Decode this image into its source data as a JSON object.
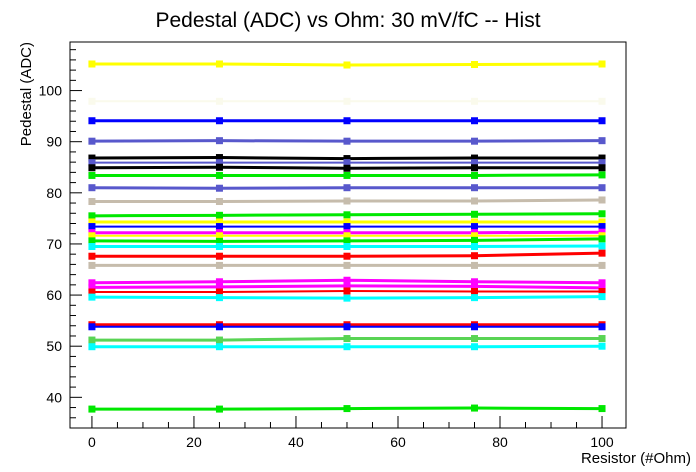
{
  "chart_data": {
    "type": "line",
    "title": "Pedestal (ADC) vs Ohm: 30 mV/fC -- Hist",
    "xlabel": "Resistor (#Ohm)",
    "ylabel": "Pedestal (ADC)",
    "x": [
      0,
      25,
      50,
      75,
      100
    ],
    "xlim": [
      -4.3,
      104.7
    ],
    "ylim": [
      34,
      109.5
    ],
    "x_major_ticks": [
      0,
      20,
      40,
      60,
      80,
      100
    ],
    "x_minor_step": 5,
    "y_major_ticks": [
      40,
      50,
      60,
      70,
      80,
      90,
      100
    ],
    "y_minor_step": 2,
    "grid": false,
    "legend": "none",
    "marker": "filled-square",
    "marker_size": 7,
    "frame_color": "#000000",
    "background_color": "#ffffff",
    "series": [
      {
        "color": "#FFFF00",
        "line_width": 3,
        "values": [
          105.2,
          105.2,
          105.0,
          105.1,
          105.2
        ]
      },
      {
        "color": "#FAFAEC",
        "line_width": 2,
        "values": [
          97.9,
          97.9,
          97.9,
          97.9,
          97.9
        ]
      },
      {
        "color": "#0000FF",
        "line_width": 3,
        "values": [
          94.1,
          94.1,
          94.1,
          94.1,
          94.1
        ]
      },
      {
        "color": "#5858CC",
        "line_width": 3,
        "values": [
          90.1,
          90.2,
          90.1,
          90.1,
          90.2
        ]
      },
      {
        "color": "#000000",
        "line_width": 3,
        "values": [
          86.8,
          86.9,
          86.7,
          86.8,
          86.8
        ]
      },
      {
        "color": "#5858CC",
        "line_width": 2,
        "values": [
          85.9,
          85.9,
          85.9,
          85.9,
          85.9
        ]
      },
      {
        "color": "#000000",
        "line_width": 3,
        "values": [
          84.9,
          85.0,
          84.8,
          84.9,
          84.9
        ]
      },
      {
        "color": "#00E800",
        "line_width": 3,
        "values": [
          83.4,
          83.4,
          83.4,
          83.4,
          83.5
        ]
      },
      {
        "color": "#5858CC",
        "line_width": 3,
        "values": [
          81.0,
          80.9,
          81.0,
          81.0,
          81.0
        ]
      },
      {
        "color": "#C6BCAC",
        "line_width": 3,
        "values": [
          78.3,
          78.3,
          78.4,
          78.4,
          78.6
        ]
      },
      {
        "color": "#00E800",
        "line_width": 3,
        "values": [
          75.5,
          75.6,
          75.7,
          75.8,
          75.9
        ]
      },
      {
        "color": "#FFFF00",
        "line_width": 3,
        "values": [
          74.3,
          74.3,
          74.3,
          74.3,
          74.3
        ]
      },
      {
        "color": "#0000FF",
        "line_width": 2,
        "values": [
          73.4,
          73.4,
          73.4,
          73.4,
          73.4
        ]
      },
      {
        "color": "#FF00FF",
        "line_width": 3,
        "values": [
          72.2,
          72.2,
          72.2,
          72.2,
          72.3
        ]
      },
      {
        "color": "#FFFF00",
        "line_width": 2,
        "values": [
          71.6,
          71.6,
          71.6,
          71.6,
          71.6
        ]
      },
      {
        "color": "#00E800",
        "line_width": 3,
        "values": [
          70.6,
          70.5,
          70.6,
          70.7,
          71.0
        ]
      },
      {
        "color": "#00FFFF",
        "line_width": 3,
        "values": [
          69.5,
          69.5,
          69.5,
          69.5,
          69.6
        ]
      },
      {
        "color": "#FF0000",
        "line_width": 3,
        "values": [
          67.6,
          67.6,
          67.6,
          67.7,
          68.2
        ]
      },
      {
        "color": "#C6BCAC",
        "line_width": 3,
        "values": [
          65.8,
          65.8,
          65.8,
          65.8,
          65.8
        ]
      },
      {
        "color": "#FF00FF",
        "line_width": 3,
        "values": [
          62.4,
          62.6,
          62.9,
          62.6,
          62.4
        ]
      },
      {
        "color": "#FF00FF",
        "line_width": 3,
        "values": [
          61.5,
          61.6,
          61.8,
          61.7,
          61.4
        ]
      },
      {
        "color": "#FF0000",
        "line_width": 2,
        "values": [
          60.6,
          60.6,
          60.8,
          60.7,
          60.7
        ]
      },
      {
        "color": "#00FFFF",
        "line_width": 3,
        "values": [
          59.6,
          59.5,
          59.4,
          59.5,
          59.7
        ]
      },
      {
        "color": "#FF0000",
        "line_width": 3,
        "values": [
          54.2,
          54.2,
          54.2,
          54.2,
          54.2
        ]
      },
      {
        "color": "#0000FF",
        "line_width": 2,
        "values": [
          53.8,
          53.8,
          53.8,
          53.8,
          53.8
        ]
      },
      {
        "color": "#59D454",
        "line_width": 3,
        "values": [
          51.2,
          51.2,
          51.5,
          51.5,
          51.5
        ]
      },
      {
        "color": "#00FFFF",
        "line_width": 3,
        "values": [
          49.9,
          49.9,
          49.9,
          49.9,
          50.0
        ]
      },
      {
        "color": "#00E800",
        "line_width": 3,
        "values": [
          37.7,
          37.7,
          37.8,
          37.9,
          37.8
        ]
      }
    ]
  }
}
